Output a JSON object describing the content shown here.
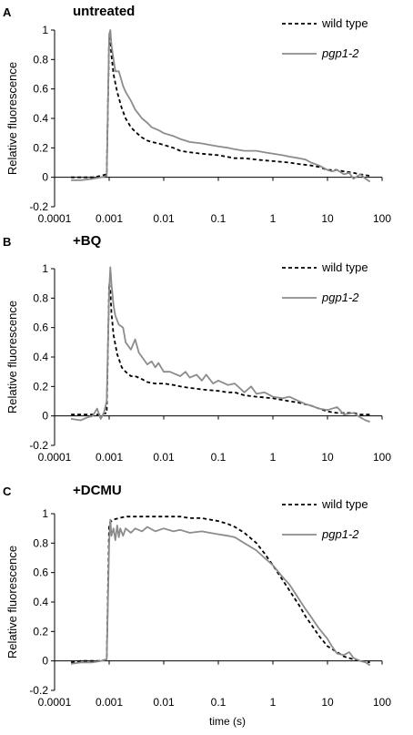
{
  "figure": {
    "shared_xlabel": "time (s)"
  },
  "chart_data": [
    {
      "type": "line",
      "panel_letter": "A",
      "title": "untreated",
      "xlabel": "",
      "ylabel": "Relative fluorescence",
      "x_scale": "log",
      "xlim": [
        0.0001,
        100
      ],
      "ylim": [
        -0.2,
        1.0
      ],
      "x_ticks": [
        "0.0001",
        "0.001",
        "0.01",
        "0.1",
        "1",
        "10",
        "100"
      ],
      "y_ticks": [
        "-0.2",
        "0",
        "0.2",
        "0.4",
        "0.6",
        "0.8",
        "1"
      ],
      "grid": false,
      "legend": "top-right",
      "colors": {
        "wild_type": "#000000",
        "pgp1_2": "#8c8c8c"
      },
      "series": [
        {
          "name": "wild type",
          "style": "dashed",
          "x": [
            0.0002,
            0.0003,
            0.0005,
            0.0007,
            0.0009,
            0.001,
            0.00105,
            0.0011,
            0.0012,
            0.0014,
            0.0017,
            0.002,
            0.0025,
            0.003,
            0.004,
            0.005,
            0.006,
            0.008,
            0.01,
            0.015,
            0.02,
            0.03,
            0.05,
            0.1,
            0.2,
            0.3,
            0.5,
            1,
            2,
            3,
            5,
            7,
            10,
            15,
            20,
            30,
            40,
            60
          ],
          "y": [
            0.0,
            0.0,
            0.0,
            0.01,
            0.02,
            0.95,
            0.92,
            0.83,
            0.7,
            0.58,
            0.47,
            0.4,
            0.34,
            0.31,
            0.27,
            0.25,
            0.24,
            0.23,
            0.22,
            0.2,
            0.18,
            0.17,
            0.16,
            0.15,
            0.13,
            0.13,
            0.12,
            0.11,
            0.1,
            0.09,
            0.08,
            0.07,
            0.05,
            0.05,
            0.04,
            0.03,
            0.02,
            0.01
          ]
        },
        {
          "name": "pgp1-2",
          "style": "solid",
          "x": [
            0.0002,
            0.0003,
            0.0005,
            0.0007,
            0.0009,
            0.001,
            0.00105,
            0.0011,
            0.0012,
            0.0013,
            0.0015,
            0.0018,
            0.002,
            0.0025,
            0.003,
            0.004,
            0.005,
            0.006,
            0.008,
            0.01,
            0.015,
            0.02,
            0.03,
            0.05,
            0.07,
            0.1,
            0.15,
            0.2,
            0.3,
            0.5,
            0.7,
            1,
            1.5,
            2,
            3,
            4,
            5,
            7,
            10,
            12,
            15,
            20,
            25,
            30,
            40,
            50,
            60
          ],
          "y": [
            -0.02,
            -0.02,
            -0.01,
            0.0,
            0.01,
            0.97,
            1.0,
            0.9,
            0.8,
            0.72,
            0.72,
            0.62,
            0.58,
            0.52,
            0.46,
            0.4,
            0.37,
            0.34,
            0.32,
            0.3,
            0.28,
            0.26,
            0.24,
            0.23,
            0.22,
            0.21,
            0.2,
            0.19,
            0.18,
            0.18,
            0.17,
            0.16,
            0.15,
            0.14,
            0.13,
            0.12,
            0.1,
            0.08,
            0.05,
            0.04,
            0.05,
            0.02,
            0.03,
            -0.01,
            0.02,
            -0.01,
            -0.03
          ]
        }
      ]
    },
    {
      "type": "line",
      "panel_letter": "B",
      "title": "+BQ",
      "xlabel": "",
      "ylabel": "Relative fluorescence",
      "x_scale": "log",
      "xlim": [
        0.0001,
        100
      ],
      "ylim": [
        -0.2,
        1.0
      ],
      "x_ticks": [
        "0.0001",
        "0.001",
        "0.01",
        "0.1",
        "1",
        "10",
        "100"
      ],
      "y_ticks": [
        "-0.2",
        "0",
        "0.2",
        "0.4",
        "0.6",
        "0.8",
        "1"
      ],
      "grid": false,
      "legend": "top-right",
      "colors": {
        "wild_type": "#000000",
        "pgp1_2": "#8c8c8c"
      },
      "series": [
        {
          "name": "wild type",
          "style": "dashed",
          "x": [
            0.0002,
            0.0003,
            0.0005,
            0.0007,
            0.0009,
            0.001,
            0.00105,
            0.0011,
            0.0012,
            0.0014,
            0.0017,
            0.002,
            0.0025,
            0.003,
            0.004,
            0.005,
            0.007,
            0.01,
            0.015,
            0.02,
            0.03,
            0.05,
            0.1,
            0.15,
            0.2,
            0.3,
            0.5,
            1,
            2,
            3,
            5,
            7,
            10,
            15,
            20,
            30,
            40,
            60
          ],
          "y": [
            0.01,
            0.01,
            0.01,
            0.01,
            0.02,
            0.9,
            0.85,
            0.7,
            0.55,
            0.42,
            0.33,
            0.3,
            0.27,
            0.27,
            0.25,
            0.23,
            0.22,
            0.22,
            0.21,
            0.2,
            0.19,
            0.18,
            0.17,
            0.16,
            0.16,
            0.14,
            0.13,
            0.12,
            0.1,
            0.09,
            0.07,
            0.05,
            0.03,
            0.02,
            0.02,
            0.02,
            0.01,
            0.01
          ]
        },
        {
          "name": "pgp1-2",
          "style": "solid",
          "x": [
            0.0002,
            0.0003,
            0.0004,
            0.0005,
            0.0006,
            0.0007,
            0.0008,
            0.0009,
            0.001,
            0.00105,
            0.0011,
            0.0012,
            0.0013,
            0.0015,
            0.0018,
            0.002,
            0.0025,
            0.003,
            0.0035,
            0.004,
            0.005,
            0.006,
            0.007,
            0.008,
            0.01,
            0.013,
            0.015,
            0.02,
            0.025,
            0.03,
            0.04,
            0.05,
            0.06,
            0.08,
            0.1,
            0.15,
            0.2,
            0.3,
            0.4,
            0.5,
            0.7,
            1,
            1.5,
            2,
            3,
            4,
            5,
            7,
            10,
            15,
            20,
            30,
            40,
            50,
            60
          ],
          "y": [
            -0.02,
            -0.03,
            -0.01,
            0.0,
            0.05,
            -0.02,
            0.02,
            0.1,
            0.85,
            1.01,
            0.9,
            0.75,
            0.68,
            0.62,
            0.6,
            0.5,
            0.45,
            0.52,
            0.43,
            0.4,
            0.35,
            0.37,
            0.33,
            0.36,
            0.3,
            0.3,
            0.29,
            0.27,
            0.3,
            0.26,
            0.28,
            0.24,
            0.28,
            0.22,
            0.24,
            0.21,
            0.22,
            0.16,
            0.2,
            0.15,
            0.16,
            0.13,
            0.12,
            0.13,
            0.1,
            0.08,
            0.07,
            0.05,
            0.04,
            0.06,
            0.01,
            0.02,
            -0.01,
            -0.03,
            -0.04
          ]
        }
      ]
    },
    {
      "type": "line",
      "panel_letter": "C",
      "title": "+DCMU",
      "xlabel": "time (s)",
      "ylabel": "Relative fluorescence",
      "x_scale": "log",
      "xlim": [
        0.0001,
        100
      ],
      "ylim": [
        -0.2,
        1.0
      ],
      "x_ticks": [
        "0.0001",
        "0.001",
        "0.01",
        "0.1",
        "1",
        "10",
        "100"
      ],
      "y_ticks": [
        "-0.2",
        "0",
        "0.2",
        "0.4",
        "0.6",
        "0.8",
        "1"
      ],
      "grid": false,
      "legend": "top-right",
      "colors": {
        "wild_type": "#000000",
        "pgp1_2": "#8c8c8c"
      },
      "series": [
        {
          "name": "wild type",
          "style": "dashed",
          "x": [
            0.0002,
            0.0003,
            0.0005,
            0.0007,
            0.0009,
            0.001,
            0.0011,
            0.0012,
            0.0015,
            0.002,
            0.003,
            0.005,
            0.01,
            0.02,
            0.03,
            0.05,
            0.07,
            0.1,
            0.15,
            0.2,
            0.3,
            0.5,
            0.7,
            1,
            1.5,
            2,
            3,
            4,
            5,
            7,
            10,
            15,
            20,
            30,
            40,
            60
          ],
          "y": [
            -0.01,
            0.0,
            0.0,
            0.0,
            0.01,
            0.93,
            0.95,
            0.96,
            0.97,
            0.98,
            0.98,
            0.98,
            0.98,
            0.98,
            0.97,
            0.97,
            0.96,
            0.95,
            0.93,
            0.91,
            0.87,
            0.8,
            0.73,
            0.65,
            0.55,
            0.48,
            0.38,
            0.3,
            0.25,
            0.17,
            0.1,
            0.06,
            0.03,
            0.01,
            0.0,
            -0.01
          ]
        },
        {
          "name": "pgp1-2",
          "style": "solid",
          "x": [
            0.0002,
            0.0003,
            0.0005,
            0.0007,
            0.0009,
            0.001,
            0.00105,
            0.0011,
            0.0012,
            0.0013,
            0.0014,
            0.0015,
            0.0016,
            0.0018,
            0.002,
            0.0025,
            0.003,
            0.004,
            0.005,
            0.007,
            0.01,
            0.015,
            0.02,
            0.03,
            0.05,
            0.07,
            0.1,
            0.15,
            0.2,
            0.3,
            0.5,
            0.7,
            1,
            1.5,
            2,
            3,
            4,
            5,
            7,
            10,
            12,
            15,
            20,
            25,
            30,
            40,
            50,
            60
          ],
          "y": [
            -0.02,
            -0.01,
            -0.01,
            0.0,
            0.01,
            0.8,
            0.96,
            0.85,
            0.9,
            0.82,
            0.92,
            0.84,
            0.9,
            0.85,
            0.9,
            0.87,
            0.9,
            0.88,
            0.91,
            0.88,
            0.9,
            0.88,
            0.89,
            0.87,
            0.88,
            0.87,
            0.86,
            0.85,
            0.84,
            0.8,
            0.75,
            0.7,
            0.65,
            0.57,
            0.52,
            0.42,
            0.35,
            0.3,
            0.22,
            0.15,
            0.1,
            0.05,
            0.04,
            0.06,
            0.02,
            0.0,
            -0.01,
            -0.03
          ]
        }
      ]
    }
  ]
}
